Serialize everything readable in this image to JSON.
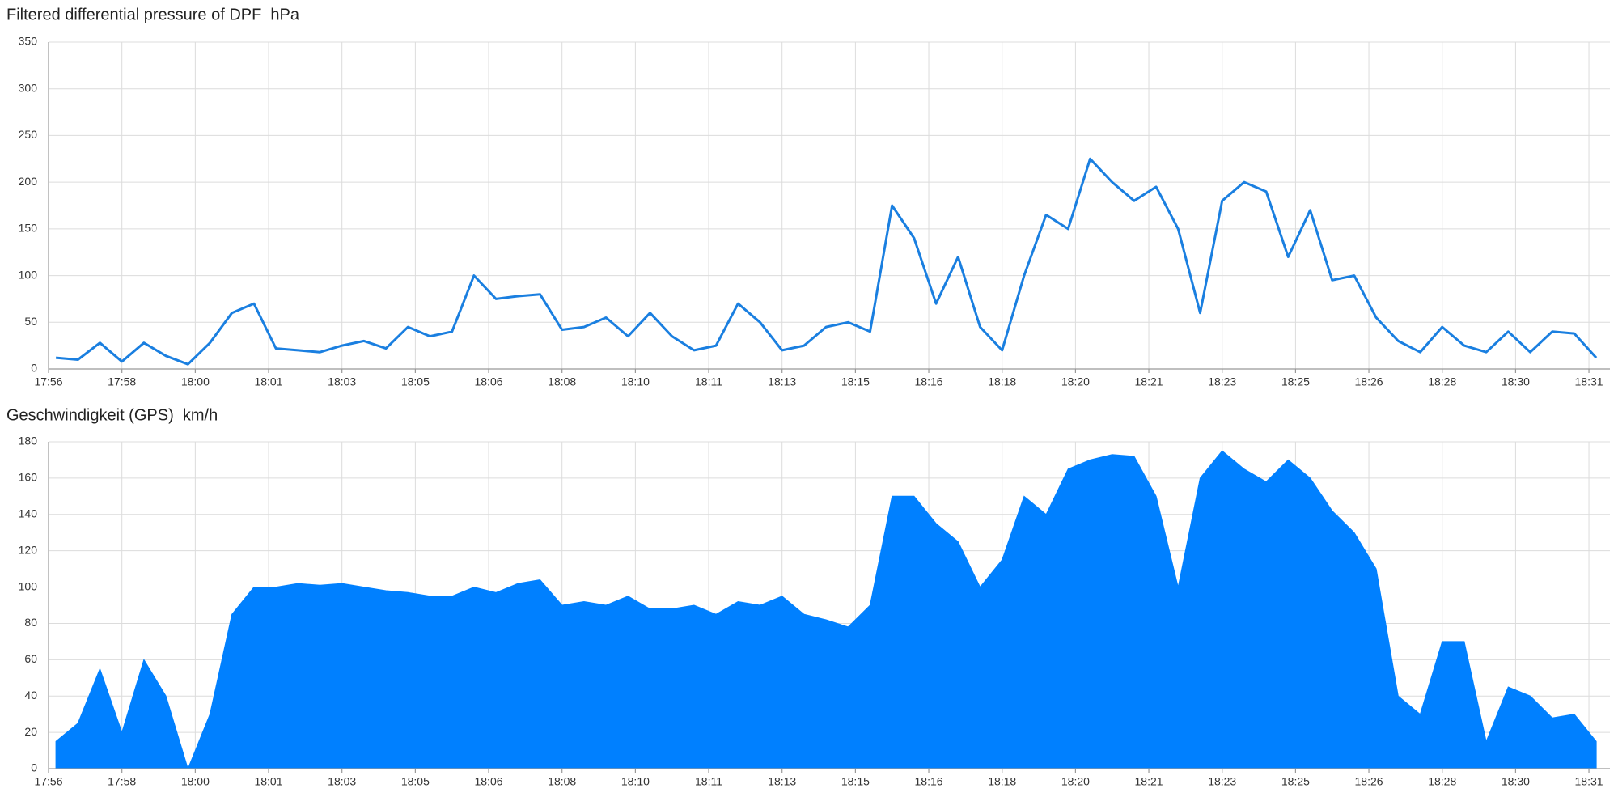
{
  "chart_data": [
    {
      "type": "line",
      "title": "Filtered differential pressure of DPF  hPa",
      "color": "#1a7fe0",
      "grid": true,
      "x": [
        1076.5,
        1077,
        1077.5,
        1078,
        1078.5,
        1079,
        1079.5,
        1080,
        1080.5,
        1081,
        1081.5,
        1082,
        1082.5,
        1083,
        1083.5,
        1084,
        1084.5,
        1085,
        1085.5,
        1086,
        1086.5,
        1087,
        1087.5,
        1088,
        1088.5,
        1089,
        1089.5,
        1090,
        1090.5,
        1091,
        1091.5,
        1092,
        1092.5,
        1093,
        1093.5,
        1094,
        1094.5,
        1095,
        1095.5,
        1096,
        1096.5,
        1097,
        1097.5,
        1098,
        1098.5,
        1099,
        1099.5,
        1100,
        1100.5,
        1101,
        1101.5,
        1102,
        1102.5,
        1103,
        1103.5,
        1104,
        1104.5,
        1105,
        1105.5,
        1106,
        1106.5,
        1107,
        1107.5,
        1108,
        1108.5,
        1109,
        1109.5,
        1110,
        1110.5,
        1111,
        1111.5
      ],
      "values": [
        12,
        10,
        28,
        8,
        28,
        14,
        5,
        28,
        60,
        70,
        22,
        20,
        18,
        25,
        30,
        22,
        45,
        35,
        40,
        100,
        75,
        78,
        80,
        42,
        45,
        55,
        35,
        60,
        35,
        20,
        25,
        70,
        50,
        20,
        25,
        45,
        50,
        40,
        175,
        140,
        70,
        120,
        45,
        20,
        100,
        165,
        150,
        225,
        200,
        180,
        195,
        150,
        60,
        180,
        200,
        190,
        120,
        170,
        95,
        100,
        55,
        30,
        18,
        45,
        25,
        18,
        40,
        18,
        40,
        38,
        12
      ],
      "xlim": [
        1076.333,
        1111.81
      ],
      "xticks": [
        {
          "value": 1076.333,
          "label": "17:56"
        },
        {
          "value": 1078,
          "label": "17:58"
        },
        {
          "value": 1079.667,
          "label": "18:00"
        },
        {
          "value": 1081.333,
          "label": "18:01"
        },
        {
          "value": 1083,
          "label": "18:03"
        },
        {
          "value": 1084.667,
          "label": "18:05"
        },
        {
          "value": 1086.333,
          "label": "18:06"
        },
        {
          "value": 1088,
          "label": "18:08"
        },
        {
          "value": 1089.667,
          "label": "18:10"
        },
        {
          "value": 1091.333,
          "label": "18:11"
        },
        {
          "value": 1093,
          "label": "18:13"
        },
        {
          "value": 1094.667,
          "label": "18:15"
        },
        {
          "value": 1096.333,
          "label": "18:16"
        },
        {
          "value": 1098,
          "label": "18:18"
        },
        {
          "value": 1099.667,
          "label": "18:20"
        },
        {
          "value": 1101.333,
          "label": "18:21"
        },
        {
          "value": 1103,
          "label": "18:23"
        },
        {
          "value": 1104.667,
          "label": "18:25"
        },
        {
          "value": 1106.333,
          "label": "18:26"
        },
        {
          "value": 1108,
          "label": "18:28"
        },
        {
          "value": 1109.667,
          "label": "18:30"
        },
        {
          "value": 1111.333,
          "label": "18:31"
        }
      ],
      "ylim": [
        0,
        350
      ],
      "yticks": [
        0,
        50,
        100,
        150,
        200,
        250,
        300,
        350
      ]
    },
    {
      "type": "area",
      "title": "Geschwindigkeit (GPS)  km/h",
      "color": "#0080ff",
      "grid": true,
      "x": [
        1076.5,
        1077,
        1077.5,
        1078,
        1078.5,
        1079,
        1079.5,
        1080,
        1080.5,
        1081,
        1081.5,
        1082,
        1082.5,
        1083,
        1083.5,
        1084,
        1084.5,
        1085,
        1085.5,
        1086,
        1086.5,
        1087,
        1087.5,
        1088,
        1088.5,
        1089,
        1089.5,
        1090,
        1090.5,
        1091,
        1091.5,
        1092,
        1092.5,
        1093,
        1093.5,
        1094,
        1094.5,
        1095,
        1095.5,
        1096,
        1096.5,
        1097,
        1097.5,
        1098,
        1098.5,
        1099,
        1099.5,
        1100,
        1100.5,
        1101,
        1101.5,
        1102,
        1102.5,
        1103,
        1103.5,
        1104,
        1104.5,
        1105,
        1105.5,
        1106,
        1106.5,
        1107,
        1107.5,
        1108,
        1108.5,
        1109,
        1109.5,
        1110,
        1110.5,
        1111,
        1111.5
      ],
      "values": [
        15,
        25,
        55,
        20,
        60,
        40,
        0,
        30,
        85,
        100,
        100,
        102,
        101,
        102,
        100,
        98,
        97,
        95,
        95,
        100,
        97,
        102,
        104,
        90,
        92,
        90,
        95,
        88,
        88,
        90,
        85,
        92,
        90,
        95,
        85,
        82,
        78,
        90,
        150,
        150,
        135,
        125,
        100,
        115,
        150,
        140,
        165,
        170,
        173,
        172,
        150,
        100,
        160,
        175,
        165,
        158,
        170,
        160,
        142,
        130,
        110,
        40,
        30,
        70,
        70,
        15,
        45,
        40,
        28,
        30,
        15
      ],
      "xlim": [
        1076.333,
        1111.81
      ],
      "xticks": [
        {
          "value": 1076.333,
          "label": "17:56"
        },
        {
          "value": 1078,
          "label": "17:58"
        },
        {
          "value": 1079.667,
          "label": "18:00"
        },
        {
          "value": 1081.333,
          "label": "18:01"
        },
        {
          "value": 1083,
          "label": "18:03"
        },
        {
          "value": 1084.667,
          "label": "18:05"
        },
        {
          "value": 1086.333,
          "label": "18:06"
        },
        {
          "value": 1088,
          "label": "18:08"
        },
        {
          "value": 1089.667,
          "label": "18:10"
        },
        {
          "value": 1091.333,
          "label": "18:11"
        },
        {
          "value": 1093,
          "label": "18:13"
        },
        {
          "value": 1094.667,
          "label": "18:15"
        },
        {
          "value": 1096.333,
          "label": "18:16"
        },
        {
          "value": 1098,
          "label": "18:18"
        },
        {
          "value": 1099.667,
          "label": "18:20"
        },
        {
          "value": 1101.333,
          "label": "18:21"
        },
        {
          "value": 1103,
          "label": "18:23"
        },
        {
          "value": 1104.667,
          "label": "18:25"
        },
        {
          "value": 1106.333,
          "label": "18:26"
        },
        {
          "value": 1108,
          "label": "18:28"
        },
        {
          "value": 1109.667,
          "label": "18:30"
        },
        {
          "value": 1111.333,
          "label": "18:31"
        }
      ],
      "ylim": [
        0,
        180
      ],
      "yticks": [
        0,
        20,
        40,
        60,
        80,
        100,
        120,
        140,
        160,
        180
      ]
    }
  ]
}
